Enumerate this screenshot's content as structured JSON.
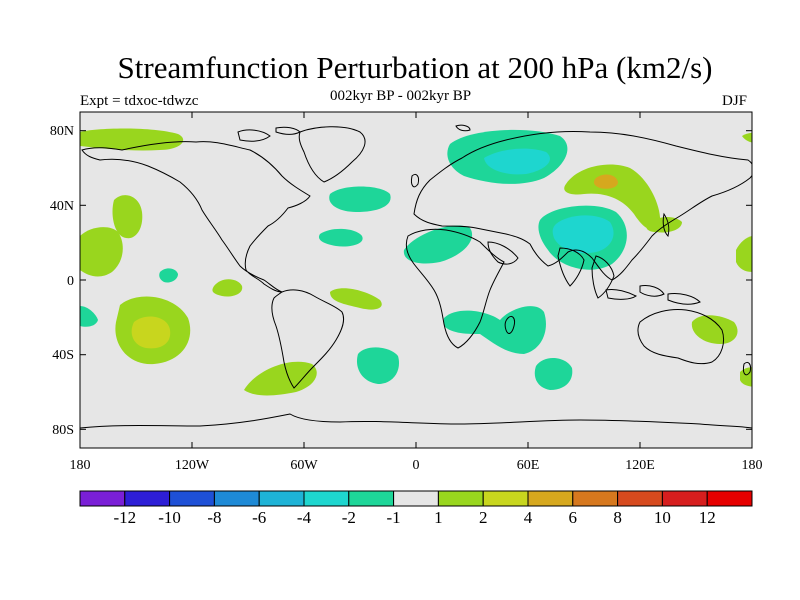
{
  "title": "Streamfunction Perturbation at 200 hPa (km2/s)",
  "subtitle": "002kyr BP - 002kyr BP",
  "left_label": "Expt = tdxoc-tdwzc",
  "right_label": "DJF",
  "lat_ticks": [
    "80N",
    "40N",
    "0",
    "40S",
    "80S"
  ],
  "lon_ticks": [
    "180",
    "120W",
    "60W",
    "0",
    "60E",
    "120E",
    "180"
  ],
  "colorbar": {
    "colors": [
      "#7a1fd6",
      "#2d1ed6",
      "#1e50d6",
      "#1e8ad6",
      "#1eb3d6",
      "#1ed6cf",
      "#1ed699",
      "#e6e6e6",
      "#99d61e",
      "#c8d61e",
      "#d6a81e",
      "#d6781e",
      "#d64a1e",
      "#d61e1e",
      "#e60000"
    ],
    "labels": [
      "-12",
      "-10",
      "-8",
      "-6",
      "-4",
      "-2",
      "-1",
      "1",
      "2",
      "4",
      "6",
      "8",
      "10",
      "12"
    ]
  },
  "map_colors": {
    "background": "#e6e6e6",
    "green": "#99d61e",
    "olive": "#c8d61e",
    "orange": "#d6a81e",
    "teal": "#1ed699",
    "cyan": "#1ed6cf"
  }
}
